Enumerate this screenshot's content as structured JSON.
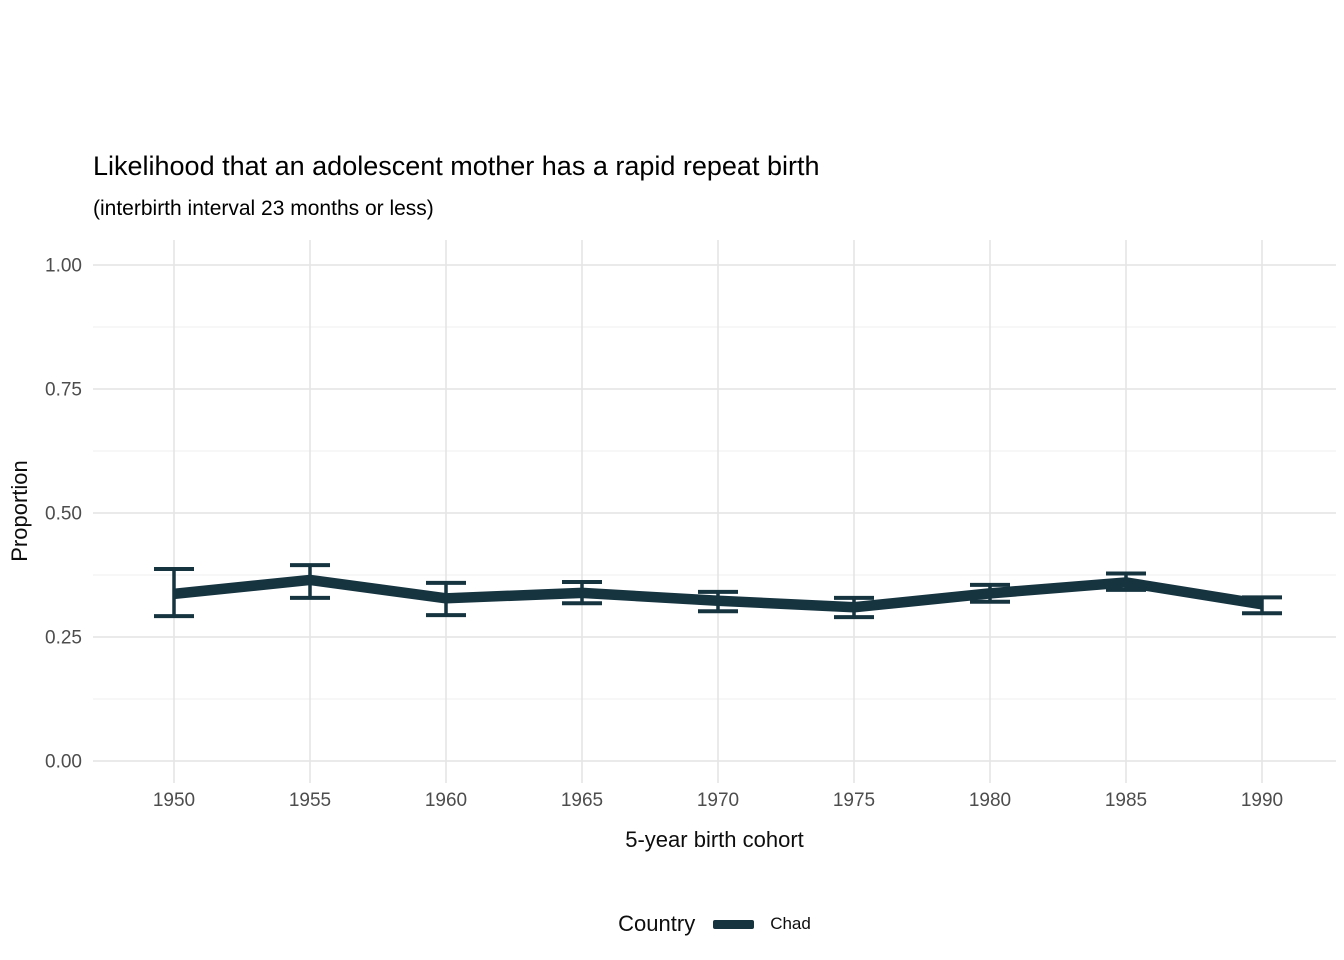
{
  "title": "Likelihood that an adolescent mother has a rapid repeat birth",
  "subtitle": "(interbirth interval 23 months or less)",
  "legend": {
    "title": "Country",
    "items": [
      {
        "label": "Chad",
        "color": "#163440"
      }
    ]
  },
  "colors": {
    "series": "#163440",
    "grid_major": "#e4e4e4",
    "grid_minor": "#efefef",
    "axis_text": "#4d4d4d",
    "title_text": "#000000"
  },
  "chart_data": {
    "type": "line",
    "title": "Likelihood that an adolescent mother has a rapid repeat birth",
    "subtitle": "(interbirth interval 23 months or less)",
    "xlabel": "5-year birth cohort",
    "ylabel": "Proportion",
    "x": [
      "1950",
      "1955",
      "1960",
      "1965",
      "1970",
      "1975",
      "1980",
      "1985",
      "1990"
    ],
    "series": [
      {
        "name": "Chad",
        "color": "#163440",
        "values": [
          0.337,
          0.365,
          0.328,
          0.339,
          0.323,
          0.31,
          0.338,
          0.36,
          0.316
        ],
        "ci_low": [
          0.292,
          0.329,
          0.294,
          0.318,
          0.302,
          0.29,
          0.321,
          0.345,
          0.298
        ],
        "ci_high": [
          0.387,
          0.395,
          0.359,
          0.361,
          0.341,
          0.329,
          0.355,
          0.378,
          0.33
        ]
      }
    ],
    "ylim": [
      0,
      1
    ],
    "yticks": [
      0.0,
      0.25,
      0.5,
      0.75,
      1.0
    ],
    "ytick_labels": [
      "0.00",
      "0.25",
      "0.50",
      "0.75",
      "1.00"
    ],
    "yticks_minor": [
      0.125,
      0.375,
      0.625,
      0.875
    ],
    "grid": "horizontal major+minor, vertical major only",
    "legend_position": "bottom-center",
    "error_bars": true
  }
}
